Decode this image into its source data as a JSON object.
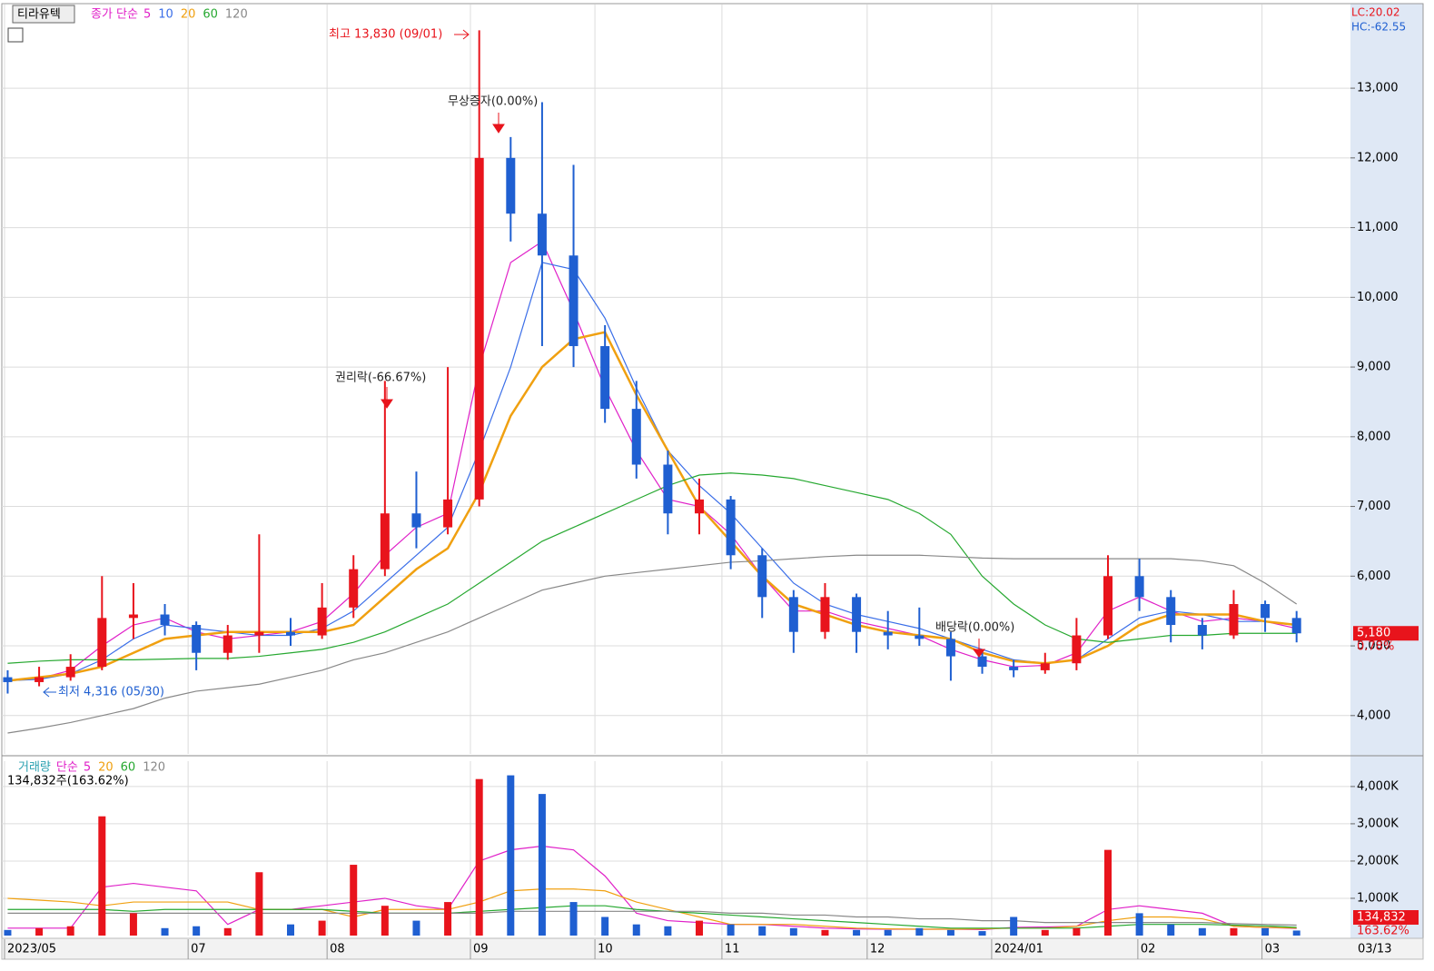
{
  "header": {
    "stock": "티라유텍",
    "lc": "LC:20.02",
    "hc": "HC:-62.55"
  },
  "chart_data": [
    {
      "type": "candlestick",
      "legend_prefix": "종가 단순",
      "up_color": "#e8141c",
      "down_color": "#1f5fd1",
      "open": [
        4550,
        4480,
        4550,
        4700,
        5400,
        5450,
        5300,
        4900,
        5150,
        5200,
        5150,
        5550,
        6100,
        6900,
        6700,
        7100,
        12000,
        11200,
        10600,
        9300,
        8400,
        7600,
        6900,
        7100,
        6300,
        5700,
        5200,
        5700,
        5200,
        5150,
        5100,
        4850,
        4700,
        4650,
        4750,
        5150,
        6000,
        5700,
        5300,
        5150,
        5600,
        5400
      ],
      "high": [
        4650,
        4700,
        4880,
        6000,
        5900,
        5600,
        5350,
        5300,
        6600,
        5400,
        5900,
        6300,
        8800,
        7500,
        9000,
        13830,
        12300,
        12800,
        11900,
        9600,
        8800,
        7800,
        7400,
        7150,
        6400,
        5800,
        5900,
        5750,
        5500,
        5550,
        5200,
        4950,
        4800,
        4900,
        5400,
        6300,
        6250,
        5800,
        5400,
        5800,
        5650,
        5500
      ],
      "low": [
        4316,
        4420,
        4500,
        4650,
        5100,
        5150,
        4650,
        4800,
        4900,
        5000,
        5100,
        5400,
        6000,
        6400,
        6600,
        7000,
        10800,
        9300,
        9000,
        8200,
        7400,
        6600,
        6600,
        6100,
        5400,
        4900,
        5100,
        4900,
        4950,
        5000,
        4500,
        4600,
        4550,
        4600,
        4650,
        5100,
        5500,
        5050,
        4950,
        5100,
        5200,
        5050
      ],
      "close": [
        4480,
        4550,
        4700,
        5400,
        5450,
        5300,
        4900,
        5150,
        5200,
        5150,
        5550,
        6100,
        6900,
        6700,
        7100,
        12000,
        11200,
        10600,
        9300,
        8400,
        7600,
        6900,
        7100,
        6300,
        5700,
        5200,
        5700,
        5200,
        5150,
        5100,
        4850,
        4700,
        4650,
        4750,
        5150,
        6000,
        5700,
        5300,
        5150,
        5600,
        5400,
        5180
      ],
      "series": [
        {
          "name": "5",
          "color": "#e020c8",
          "values": [
            4500,
            4530,
            4650,
            5000,
            5300,
            5400,
            5200,
            5100,
            5150,
            5200,
            5350,
            5750,
            6300,
            6700,
            6900,
            9000,
            10500,
            10800,
            9800,
            8700,
            7800,
            7100,
            7000,
            6600,
            6000,
            5500,
            5500,
            5350,
            5250,
            5150,
            4950,
            4800,
            4700,
            4720,
            4900,
            5500,
            5700,
            5500,
            5350,
            5400,
            5350,
            5250
          ]
        },
        {
          "name": "10",
          "color": "#3a6ee8",
          "values": [
            4500,
            4520,
            4600,
            4800,
            5100,
            5300,
            5250,
            5200,
            5150,
            5150,
            5250,
            5500,
            5900,
            6300,
            6700,
            7800,
            9000,
            10500,
            10400,
            9700,
            8700,
            7800,
            7300,
            6900,
            6400,
            5900,
            5600,
            5450,
            5350,
            5250,
            5100,
            4950,
            4800,
            4750,
            4800,
            5100,
            5400,
            5500,
            5450,
            5350,
            5350,
            5300
          ]
        },
        {
          "name": "20",
          "color": "#f0a010",
          "values": [
            4500,
            4550,
            4600,
            4700,
            4900,
            5100,
            5150,
            5200,
            5200,
            5200,
            5200,
            5300,
            5700,
            6100,
            6400,
            7200,
            8300,
            9000,
            9400,
            9500,
            8600,
            7800,
            7000,
            6500,
            6000,
            5600,
            5450,
            5300,
            5200,
            5150,
            5100,
            4900,
            4780,
            4750,
            4800,
            5000,
            5300,
            5450,
            5450,
            5450,
            5350,
            5300
          ]
        },
        {
          "name": "60",
          "color": "#26a830",
          "values": [
            4750,
            4780,
            4800,
            4800,
            4800,
            4810,
            4820,
            4820,
            4850,
            4900,
            4950,
            5050,
            5200,
            5400,
            5600,
            5900,
            6200,
            6500,
            6700,
            6900,
            7100,
            7300,
            7450,
            7480,
            7450,
            7400,
            7300,
            7200,
            7100,
            6900,
            6600,
            6000,
            5600,
            5300,
            5100,
            5050,
            5100,
            5150,
            5150,
            5180,
            5180,
            5180
          ]
        },
        {
          "name": "120",
          "color": "#888888",
          "values": [
            3750,
            3820,
            3900,
            4000,
            4100,
            4250,
            4350,
            4400,
            4450,
            4550,
            4650,
            4800,
            4900,
            5050,
            5200,
            5400,
            5600,
            5800,
            5900,
            6000,
            6050,
            6100,
            6150,
            6200,
            6220,
            6250,
            6280,
            6300,
            6300,
            6300,
            6280,
            6260,
            6250,
            6250,
            6250,
            6250,
            6250,
            6250,
            6220,
            6150,
            5900,
            5600
          ]
        }
      ],
      "ylim": [
        3450,
        14200
      ],
      "yticks": [
        {
          "value": 4000,
          "label": "4,000"
        },
        {
          "value": 5000,
          "label": "5,000"
        },
        {
          "value": 6000,
          "label": "6,000"
        },
        {
          "value": 7000,
          "label": "7,000"
        },
        {
          "value": 8000,
          "label": "8,000"
        },
        {
          "value": 9000,
          "label": "9,000"
        },
        {
          "value": 10000,
          "label": "10,000"
        },
        {
          "value": 11000,
          "label": "11,000"
        },
        {
          "value": 12000,
          "label": "12,000"
        },
        {
          "value": 13000,
          "label": "13,000"
        }
      ],
      "xlim": [
        -0.1,
        42.8
      ],
      "xticks": [
        {
          "value": -0.1,
          "label": "2023/05"
        },
        {
          "value": 5.74,
          "label": "07"
        },
        {
          "value": 10.16,
          "label": "08"
        },
        {
          "value": 14.72,
          "label": "09"
        },
        {
          "value": 18.68,
          "label": "10"
        },
        {
          "value": 22.72,
          "label": "11"
        },
        {
          "value": 27.34,
          "label": "12"
        },
        {
          "value": 31.3,
          "label": "2024/01"
        },
        {
          "value": 35.95,
          "label": "02"
        },
        {
          "value": 39.9,
          "label": "03"
        }
      ],
      "x_end_label": "03/13",
      "annotations": {
        "high": "최고 13,830 (09/01)",
        "low": "최저 4,316 (05/30)",
        "rights": "권리락(-66.67%)",
        "bonus": "무상증자(0.00%)",
        "dividend": "배당락(0.00%)"
      },
      "last_price": {
        "value": 5180,
        "label": "5,180",
        "change": "0.78%"
      }
    },
    {
      "type": "bar",
      "legend_prefix": "거래량",
      "legend_sub": "단순",
      "info": "134,832주(163.62%)",
      "values": [
        150,
        200,
        250,
        3200,
        600,
        200,
        250,
        200,
        1700,
        300,
        400,
        1900,
        800,
        400,
        900,
        4200,
        4300,
        3800,
        900,
        500,
        300,
        250,
        400,
        300,
        250,
        200,
        150,
        150,
        150,
        200,
        150,
        120,
        500,
        150,
        200,
        2300,
        600,
        300,
        200,
        200,
        200,
        134.832
      ],
      "series": [
        {
          "name": "5",
          "color": "#e020c8",
          "values": [
            200,
            200,
            200,
            1300,
            1400,
            1300,
            1200,
            300,
            700,
            700,
            800,
            900,
            1000,
            800,
            700,
            2000,
            2300,
            2400,
            2300,
            1600,
            600,
            400,
            350,
            300,
            300,
            250,
            200,
            180,
            170,
            170,
            170,
            160,
            220,
            230,
            250,
            700,
            800,
            700,
            600,
            250,
            220,
            190
          ]
        },
        {
          "name": "20",
          "color": "#f0a010",
          "values": [
            1000,
            950,
            900,
            800,
            900,
            900,
            900,
            900,
            700,
            700,
            700,
            500,
            700,
            700,
            700,
            900,
            1200,
            1250,
            1250,
            1200,
            900,
            700,
            500,
            300,
            300,
            300,
            250,
            200,
            180,
            170,
            170,
            180,
            200,
            200,
            250,
            400,
            500,
            500,
            450,
            250,
            220,
            200
          ]
        },
        {
          "name": "60",
          "color": "#26a830",
          "values": [
            700,
            700,
            700,
            700,
            650,
            700,
            700,
            700,
            700,
            700,
            700,
            650,
            600,
            600,
            600,
            650,
            700,
            750,
            800,
            800,
            700,
            650,
            600,
            550,
            500,
            450,
            400,
            350,
            300,
            250,
            200,
            200,
            200,
            200,
            200,
            250,
            300,
            300,
            300,
            280,
            260,
            220
          ]
        },
        {
          "name": "120",
          "color": "#888888",
          "values": [
            600,
            600,
            600,
            600,
            600,
            600,
            600,
            600,
            600,
            600,
            600,
            600,
            600,
            600,
            600,
            600,
            650,
            650,
            650,
            650,
            650,
            650,
            650,
            600,
            600,
            550,
            550,
            500,
            500,
            450,
            450,
            400,
            400,
            350,
            350,
            350,
            350,
            350,
            350,
            320,
            300,
            280
          ]
        }
      ],
      "ylim": [
        0,
        4680
      ],
      "yticks": [
        {
          "value": 1000,
          "label": "1,000K"
        },
        {
          "value": 2000,
          "label": "2,000K"
        },
        {
          "value": 3000,
          "label": "3,000K"
        },
        {
          "value": 4000,
          "label": "4,000K"
        }
      ],
      "last_label": {
        "value": "134,832",
        "change": "163.62%"
      }
    }
  ]
}
